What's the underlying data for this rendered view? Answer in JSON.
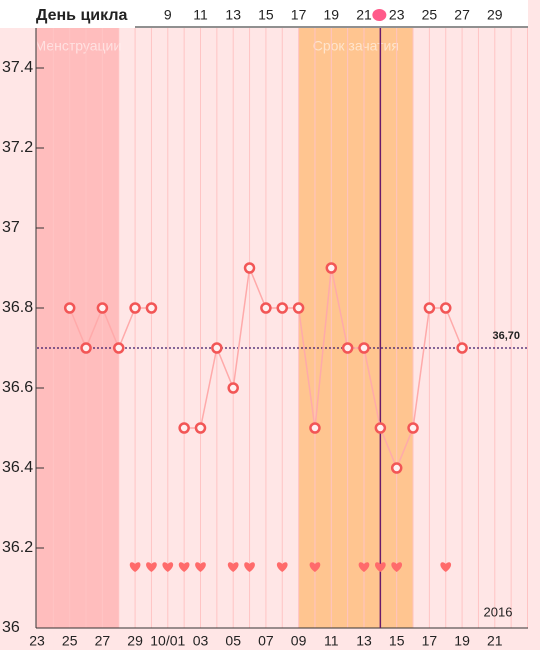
{
  "chart_data": {
    "type": "line",
    "x_label": "День цикла",
    "categories": [
      "23",
      null,
      "25",
      null,
      "27",
      null,
      "29",
      null,
      "10/01",
      null,
      "03",
      null,
      "05",
      null,
      "07",
      null,
      "09",
      null,
      "11",
      null,
      "13",
      null,
      "15",
      null,
      "17",
      null,
      "19",
      null,
      "21",
      null,
      null
    ],
    "cycle_days": [
      null,
      null,
      null,
      null,
      null,
      null,
      null,
      null,
      9,
      null,
      11,
      null,
      13,
      null,
      15,
      null,
      17,
      null,
      19,
      null,
      21,
      null,
      23,
      null,
      25,
      null,
      27,
      null,
      29,
      null,
      null
    ],
    "series": [
      {
        "color": "#ffaaaa",
        "marker_color": "#f25656",
        "values": [
          null,
          null,
          36.8,
          36.7,
          36.8,
          36.7,
          36.8,
          36.8,
          null,
          36.5,
          36.5,
          36.7,
          36.6,
          36.9,
          36.8,
          36.8,
          36.8,
          36.5,
          36.9,
          36.7,
          36.7,
          36.5,
          36.4,
          36.5,
          36.8,
          36.8,
          36.7,
          null,
          null,
          null,
          null
        ]
      }
    ],
    "ylim": [
      36,
      37.5
    ],
    "yticks": [
      36,
      36.2,
      36.4,
      36.6,
      36.8,
      37,
      37.2,
      37.4
    ],
    "grid": true,
    "coverline": {
      "value": 36.7,
      "label": "36,70"
    },
    "bands": [
      {
        "label": "Менструации",
        "start": 0,
        "end": 5,
        "color": "#ffbdbd"
      },
      {
        "label": "Срок зачатия",
        "start": 16,
        "end": 23,
        "color": "#ffc590"
      }
    ],
    "today": 21,
    "hearts": [
      6,
      7,
      8,
      9,
      10,
      12,
      13,
      15,
      17,
      20,
      21,
      22,
      25
    ],
    "heart_color": "#ff6b6b",
    "year_label": "2016"
  }
}
